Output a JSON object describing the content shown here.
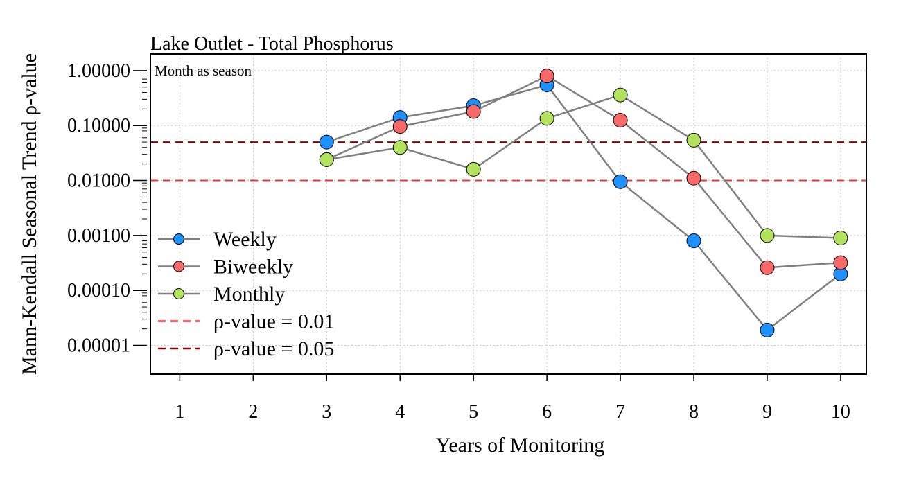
{
  "chart_data": {
    "type": "line",
    "title": "Lake Outlet - Total Phosphorus",
    "annotation": "Month as season",
    "xlabel": "Years of Monitoring",
    "ylabel": "Mann-Kendall Seasonal Trend ρ-value",
    "x_ticks": [
      1,
      2,
      3,
      4,
      5,
      6,
      7,
      8,
      9,
      10
    ],
    "x_tick_labels": [
      "1",
      "2",
      "3",
      "4",
      "5",
      "6",
      "7",
      "8",
      "9",
      "10"
    ],
    "xlim": [
      0.6,
      10.35
    ],
    "y_scale": "log",
    "ylim": [
      3e-06,
      2.0
    ],
    "y_ticks": [
      1e-05,
      0.0001,
      0.001,
      0.01,
      0.1,
      1.0
    ],
    "y_tick_labels": [
      "0.00001",
      "0.00010",
      "0.00100",
      "0.01000",
      "0.10000",
      "1.00000"
    ],
    "grid": true,
    "legend_position": "bottom-left",
    "series": [
      {
        "name": "Weekly",
        "color": "#1E90FF",
        "line_color": "#808080",
        "marker": "circle",
        "x": [
          3,
          4,
          5,
          6,
          7,
          8,
          9,
          10
        ],
        "y": [
          0.05,
          0.14,
          0.23,
          0.55,
          0.0095,
          0.0008,
          1.9e-05,
          0.0002
        ]
      },
      {
        "name": "Biweekly",
        "color": "#F86A6A",
        "line_color": "#808080",
        "marker": "circle",
        "x": [
          3,
          4,
          5,
          6,
          7,
          8,
          9,
          10
        ],
        "y": [
          0.024,
          0.096,
          0.18,
          0.8,
          0.125,
          0.011,
          0.00026,
          0.00032
        ]
      },
      {
        "name": "Monthly",
        "color": "#B3E35E",
        "line_color": "#808080",
        "marker": "circle",
        "x": [
          3,
          4,
          5,
          6,
          7,
          8,
          9,
          10
        ],
        "y": [
          0.024,
          0.04,
          0.016,
          0.135,
          0.36,
          0.054,
          0.001,
          0.0009
        ]
      }
    ],
    "reference_lines": [
      {
        "label": "ρ-value = 0.01",
        "y": 0.01,
        "color": "#FF3030",
        "style": "dashed"
      },
      {
        "label": "ρ-value = 0.05",
        "y": 0.05,
        "color": "#8B0000",
        "style": "dashed"
      }
    ]
  }
}
